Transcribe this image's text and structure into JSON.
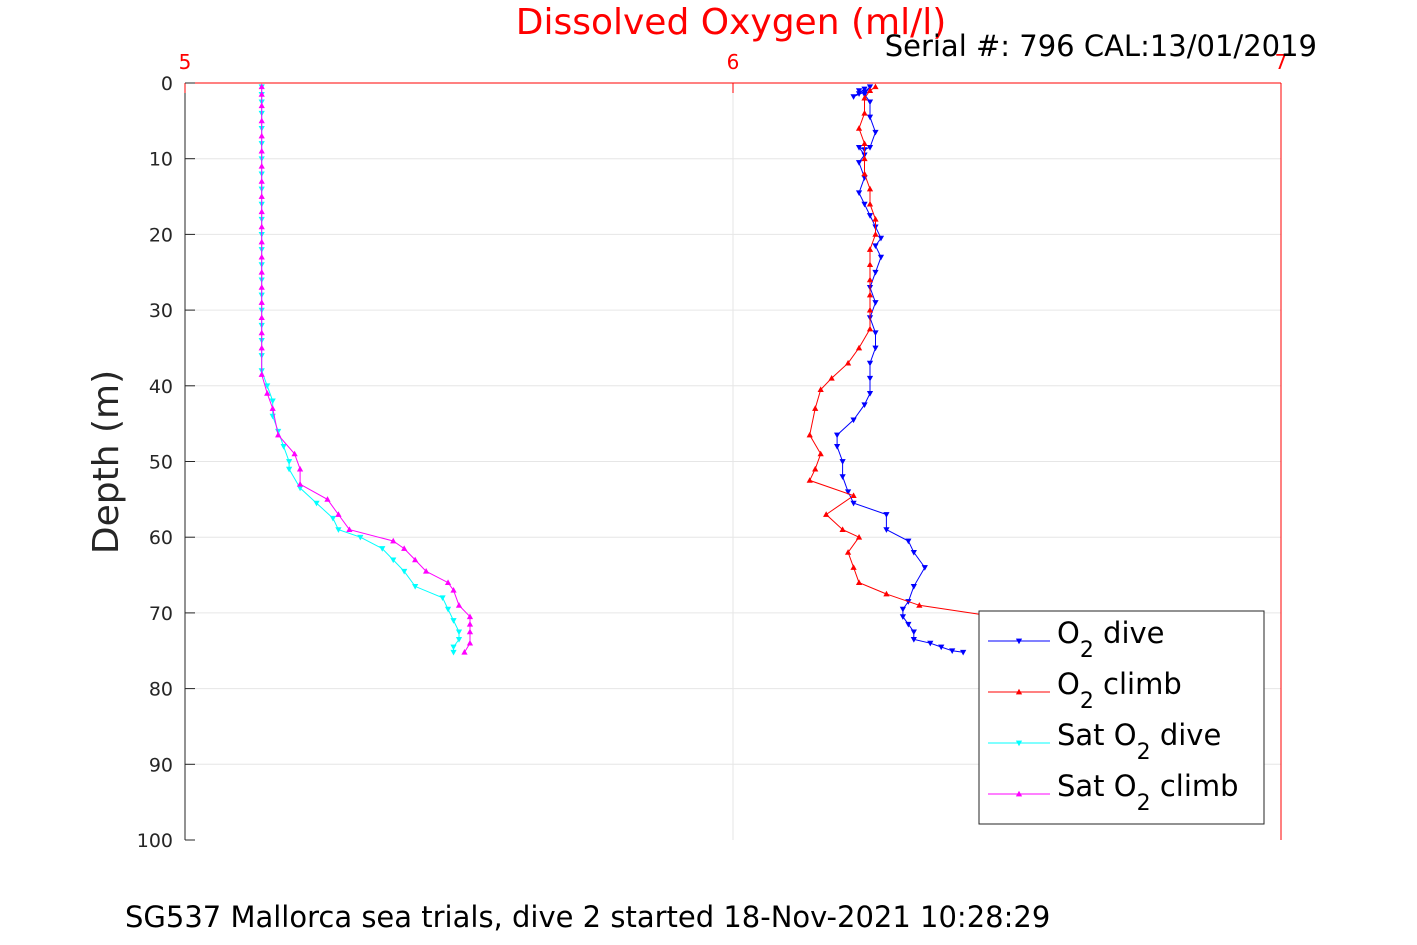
{
  "chart_data": {
    "type": "line",
    "title": "Dissolved Oxygen (ml/l)",
    "title_color": "#ff0000",
    "serial_label": "Serial #: 796  CAL:13/01/2019",
    "ylabel": "Depth (m)",
    "caption": "SG537 Mallorca sea trials, dive 2 started 18-Nov-2021 10:28:29",
    "x_axis_position": "top",
    "x_axis_color": "#ff0000",
    "xlim": [
      5,
      7
    ],
    "x_ticks": [
      "5",
      "6",
      "7"
    ],
    "ylim": [
      0,
      100
    ],
    "y_reversed": true,
    "y_ticks": [
      "0",
      "10",
      "20",
      "30",
      "40",
      "50",
      "60",
      "70",
      "80",
      "90",
      "100"
    ],
    "grid": true,
    "legend_position": "bottom-right",
    "series": [
      {
        "legend_main": "O",
        "legend_sub": "2",
        "legend_tail": " dive",
        "color": "#0000ff",
        "marker": "down-triangle",
        "points": [
          [
            6.23,
            1.0
          ],
          [
            6.23,
            1.4
          ],
          [
            6.24,
            0.8
          ],
          [
            6.22,
            1.8
          ],
          [
            6.24,
            1.2
          ],
          [
            6.25,
            0.5
          ],
          [
            6.24,
            1.5
          ],
          [
            6.25,
            2.5
          ],
          [
            6.25,
            4.5
          ],
          [
            6.26,
            6.5
          ],
          [
            6.25,
            8.5
          ],
          [
            6.24,
            8.8
          ],
          [
            6.23,
            8.5
          ],
          [
            6.24,
            9.5
          ],
          [
            6.23,
            10.5
          ],
          [
            6.24,
            12.5
          ],
          [
            6.23,
            14.5
          ],
          [
            6.24,
            16
          ],
          [
            6.25,
            17.5
          ],
          [
            6.26,
            19
          ],
          [
            6.27,
            20.5
          ],
          [
            6.26,
            21.5
          ],
          [
            6.27,
            23
          ],
          [
            6.26,
            25
          ],
          [
            6.25,
            27
          ],
          [
            6.26,
            29
          ],
          [
            6.25,
            31
          ],
          [
            6.26,
            33
          ],
          [
            6.26,
            35
          ],
          [
            6.25,
            37
          ],
          [
            6.25,
            39
          ],
          [
            6.25,
            41
          ],
          [
            6.24,
            42.5
          ],
          [
            6.22,
            44.5
          ],
          [
            6.19,
            46.5
          ],
          [
            6.19,
            48
          ],
          [
            6.2,
            50
          ],
          [
            6.2,
            52
          ],
          [
            6.21,
            54
          ],
          [
            6.22,
            55.5
          ],
          [
            6.28,
            57
          ],
          [
            6.28,
            59
          ],
          [
            6.32,
            60.5
          ],
          [
            6.33,
            62
          ],
          [
            6.35,
            64
          ],
          [
            6.33,
            66.5
          ],
          [
            6.32,
            68.5
          ],
          [
            6.31,
            69.5
          ],
          [
            6.31,
            70.5
          ],
          [
            6.32,
            71.5
          ],
          [
            6.33,
            72.5
          ],
          [
            6.33,
            73.5
          ],
          [
            6.36,
            74
          ],
          [
            6.38,
            74.5
          ],
          [
            6.4,
            75
          ],
          [
            6.42,
            75.2
          ]
        ]
      },
      {
        "legend_main": "O",
        "legend_sub": "2",
        "legend_tail": " climb",
        "color": "#ff0000",
        "marker": "up-triangle",
        "points": [
          [
            6.52,
            71.5
          ],
          [
            6.48,
            70.5
          ],
          [
            6.34,
            69
          ],
          [
            6.28,
            67.5
          ],
          [
            6.23,
            66
          ],
          [
            6.22,
            64
          ],
          [
            6.21,
            62
          ],
          [
            6.23,
            60
          ],
          [
            6.2,
            59
          ],
          [
            6.17,
            57
          ],
          [
            6.22,
            54.5
          ],
          [
            6.14,
            52.5
          ],
          [
            6.15,
            51
          ],
          [
            6.16,
            49
          ],
          [
            6.14,
            46.5
          ],
          [
            6.15,
            43
          ],
          [
            6.16,
            40.5
          ],
          [
            6.18,
            39
          ],
          [
            6.21,
            37
          ],
          [
            6.23,
            35
          ],
          [
            6.25,
            32.5
          ],
          [
            6.25,
            30
          ],
          [
            6.25,
            28
          ],
          [
            6.25,
            26
          ],
          [
            6.25,
            24
          ],
          [
            6.25,
            22
          ],
          [
            6.26,
            20
          ],
          [
            6.26,
            18
          ],
          [
            6.25,
            16
          ],
          [
            6.25,
            14
          ],
          [
            6.24,
            12
          ],
          [
            6.24,
            10
          ],
          [
            6.24,
            8
          ],
          [
            6.23,
            6
          ],
          [
            6.24,
            4
          ],
          [
            6.24,
            2
          ],
          [
            6.25,
            1
          ],
          [
            6.26,
            0.5
          ]
        ]
      },
      {
        "legend_main": "Sat O",
        "legend_sub": "2",
        "legend_tail": " dive",
        "color": "#00ffff",
        "marker": "down-triangle",
        "points": [
          [
            5.14,
            0.5
          ],
          [
            5.14,
            1.5
          ],
          [
            5.14,
            2.5
          ],
          [
            5.14,
            4
          ],
          [
            5.14,
            6
          ],
          [
            5.14,
            8
          ],
          [
            5.14,
            10
          ],
          [
            5.14,
            12
          ],
          [
            5.14,
            14
          ],
          [
            5.14,
            16
          ],
          [
            5.14,
            18
          ],
          [
            5.14,
            20
          ],
          [
            5.14,
            22
          ],
          [
            5.14,
            24
          ],
          [
            5.14,
            26
          ],
          [
            5.14,
            28
          ],
          [
            5.14,
            30
          ],
          [
            5.14,
            32
          ],
          [
            5.14,
            34
          ],
          [
            5.14,
            36
          ],
          [
            5.14,
            38
          ],
          [
            5.15,
            40
          ],
          [
            5.16,
            42
          ],
          [
            5.16,
            44
          ],
          [
            5.17,
            46
          ],
          [
            5.18,
            48
          ],
          [
            5.19,
            50
          ],
          [
            5.19,
            51
          ],
          [
            5.21,
            53.5
          ],
          [
            5.24,
            55.5
          ],
          [
            5.27,
            57.5
          ],
          [
            5.28,
            59
          ],
          [
            5.32,
            60
          ],
          [
            5.36,
            61.5
          ],
          [
            5.38,
            63
          ],
          [
            5.4,
            64.5
          ],
          [
            5.42,
            66.5
          ],
          [
            5.47,
            68
          ],
          [
            5.48,
            69.5
          ],
          [
            5.49,
            71
          ],
          [
            5.5,
            72.5
          ],
          [
            5.5,
            73.5
          ],
          [
            5.49,
            74.5
          ],
          [
            5.49,
            75.2
          ]
        ]
      },
      {
        "legend_main": "Sat O",
        "legend_sub": "2",
        "legend_tail": " climb",
        "color": "#ff00ff",
        "marker": "up-triangle",
        "points": [
          [
            5.51,
            75.2
          ],
          [
            5.52,
            74
          ],
          [
            5.52,
            72.5
          ],
          [
            5.52,
            71.5
          ],
          [
            5.52,
            70.5
          ],
          [
            5.5,
            69
          ],
          [
            5.49,
            67
          ],
          [
            5.48,
            66
          ],
          [
            5.44,
            64.5
          ],
          [
            5.42,
            63
          ],
          [
            5.4,
            61.5
          ],
          [
            5.38,
            60.5
          ],
          [
            5.3,
            59
          ],
          [
            5.28,
            57
          ],
          [
            5.26,
            55
          ],
          [
            5.21,
            53
          ],
          [
            5.21,
            51
          ],
          [
            5.2,
            49
          ],
          [
            5.17,
            46.5
          ],
          [
            5.16,
            43
          ],
          [
            5.15,
            41
          ],
          [
            5.14,
            38.5
          ],
          [
            5.14,
            35
          ],
          [
            5.14,
            33
          ],
          [
            5.14,
            31
          ],
          [
            5.14,
            29
          ],
          [
            5.14,
            27
          ],
          [
            5.14,
            25
          ],
          [
            5.14,
            23
          ],
          [
            5.14,
            21
          ],
          [
            5.14,
            19
          ],
          [
            5.14,
            17
          ],
          [
            5.14,
            15
          ],
          [
            5.14,
            13
          ],
          [
            5.14,
            11
          ],
          [
            5.14,
            9
          ],
          [
            5.14,
            7
          ],
          [
            5.14,
            5
          ],
          [
            5.14,
            3
          ],
          [
            5.14,
            1.5
          ],
          [
            5.14,
            0.5
          ]
        ]
      }
    ]
  }
}
